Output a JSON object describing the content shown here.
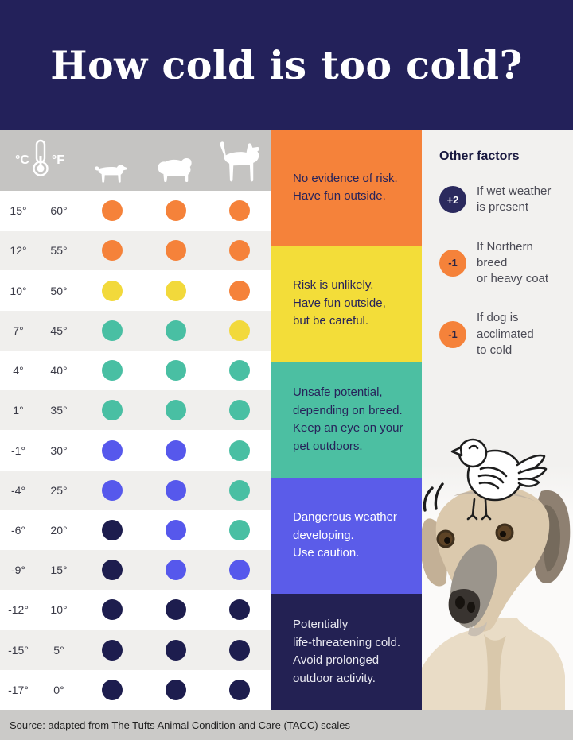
{
  "header": {
    "title": "How cold is too cold?"
  },
  "table": {
    "unit_c": "°C",
    "unit_f": "°F",
    "dog_columns": [
      "small-dog",
      "medium-dog",
      "large-dog"
    ],
    "rows": [
      {
        "c": "15°",
        "f": "60°",
        "dots": [
          "orange",
          "orange",
          "orange"
        ]
      },
      {
        "c": "12°",
        "f": "55°",
        "dots": [
          "orange",
          "orange",
          "orange"
        ]
      },
      {
        "c": "10°",
        "f": "50°",
        "dots": [
          "yellow",
          "yellow",
          "orange"
        ]
      },
      {
        "c": "7°",
        "f": "45°",
        "dots": [
          "teal",
          "teal",
          "yellow"
        ]
      },
      {
        "c": "4°",
        "f": "40°",
        "dots": [
          "teal",
          "teal",
          "teal"
        ]
      },
      {
        "c": "1°",
        "f": "35°",
        "dots": [
          "teal",
          "teal",
          "teal"
        ]
      },
      {
        "c": "-1°",
        "f": "30°",
        "dots": [
          "blue",
          "blue",
          "teal"
        ]
      },
      {
        "c": "-4°",
        "f": "25°",
        "dots": [
          "blue",
          "blue",
          "teal"
        ]
      },
      {
        "c": "-6°",
        "f": "20°",
        "dots": [
          "navy",
          "blue",
          "teal"
        ]
      },
      {
        "c": "-9°",
        "f": "15°",
        "dots": [
          "navy",
          "blue",
          "blue"
        ]
      },
      {
        "c": "-12°",
        "f": "10°",
        "dots": [
          "navy",
          "navy",
          "navy"
        ]
      },
      {
        "c": "-15°",
        "f": "5°",
        "dots": [
          "navy",
          "navy",
          "navy"
        ]
      },
      {
        "c": "-17°",
        "f": "0°",
        "dots": [
          "navy",
          "navy",
          "navy"
        ]
      }
    ]
  },
  "dot_colors": {
    "orange": "#f5823a",
    "yellow": "#f2d93b",
    "teal": "#49bfa3",
    "blue": "#5658ec",
    "navy": "#1d1d4e"
  },
  "risk_bands": [
    {
      "bg": "#f5823a",
      "fg": "#27235a",
      "lines": [
        "No evidence of risk.",
        "Have fun outside."
      ]
    },
    {
      "bg": "#f3dd39",
      "fg": "#27235a",
      "lines": [
        "Risk is unlikely.",
        "Have fun outside,",
        "but be careful."
      ]
    },
    {
      "bg": "#4cbfa2",
      "fg": "#27235a",
      "lines": [
        "Unsafe potential,",
        "depending on breed.",
        "Keep an eye on your",
        "pet outdoors."
      ]
    },
    {
      "bg": "#5b5ce9",
      "fg": "#ffffff",
      "lines": [
        "Dangerous weather",
        "developing.",
        "Use caution."
      ]
    },
    {
      "bg": "#232153",
      "fg": "#e8e8f0",
      "lines": [
        "Potentially",
        "life-threatening cold.",
        "Avoid prolonged",
        "outdoor activity."
      ]
    }
  ],
  "other_factors": {
    "heading": "Other factors",
    "items": [
      {
        "badge": "+2",
        "badge_bg": "#2b2a5e",
        "badge_fg": "#ffffff",
        "lines": [
          "If wet weather",
          "is present"
        ]
      },
      {
        "badge": "-1",
        "badge_bg": "#f5823a",
        "badge_fg": "#2b2544",
        "lines": [
          "If Northern breed",
          "or heavy coat"
        ]
      },
      {
        "badge": "-1",
        "badge_bg": "#f5823a",
        "badge_fg": "#2b2544",
        "lines": [
          "If dog is",
          "acclimated",
          "to cold"
        ]
      }
    ]
  },
  "footer": {
    "source": "Source: adapted from The Tufts Animal Condition and Care (TACC) scales"
  },
  "colors": {
    "header_bg": "#23215a",
    "table_head_bg": "#c5c4c2",
    "row_alt_bg": "#f0efed",
    "right_col_bg": "#f2f1ef",
    "footer_bg": "#cbcac8"
  },
  "chart_data": {
    "type": "heatmap",
    "title": "How cold is too cold?",
    "x_categories": [
      "small-dog",
      "medium-dog",
      "large-dog"
    ],
    "y_categories_celsius": [
      15,
      12,
      10,
      7,
      4,
      1,
      -1,
      -4,
      -6,
      -9,
      -12,
      -15,
      -17
    ],
    "y_categories_fahrenheit": [
      60,
      55,
      50,
      45,
      40,
      35,
      30,
      25,
      20,
      15,
      10,
      5,
      0
    ],
    "values": [
      [
        "orange",
        "orange",
        "orange"
      ],
      [
        "orange",
        "orange",
        "orange"
      ],
      [
        "yellow",
        "yellow",
        "orange"
      ],
      [
        "teal",
        "teal",
        "yellow"
      ],
      [
        "teal",
        "teal",
        "teal"
      ],
      [
        "teal",
        "teal",
        "teal"
      ],
      [
        "blue",
        "blue",
        "teal"
      ],
      [
        "blue",
        "blue",
        "teal"
      ],
      [
        "navy",
        "blue",
        "teal"
      ],
      [
        "navy",
        "blue",
        "blue"
      ],
      [
        "navy",
        "navy",
        "navy"
      ],
      [
        "navy",
        "navy",
        "navy"
      ],
      [
        "navy",
        "navy",
        "navy"
      ]
    ],
    "legend": [
      {
        "level": "orange",
        "meaning": "No evidence of risk. Have fun outside."
      },
      {
        "level": "yellow",
        "meaning": "Risk is unlikely. Have fun outside, but be careful."
      },
      {
        "level": "teal",
        "meaning": "Unsafe potential, depending on breed. Keep an eye on your pet outdoors."
      },
      {
        "level": "blue",
        "meaning": "Dangerous weather developing. Use caution."
      },
      {
        "level": "navy",
        "meaning": "Potentially life-threatening cold. Avoid prolonged outdoor activity."
      }
    ],
    "modifiers": [
      {
        "adjustment": "+2",
        "condition": "If wet weather is present"
      },
      {
        "adjustment": "-1",
        "condition": "If Northern breed or heavy coat"
      },
      {
        "adjustment": "-1",
        "condition": "If dog is acclimated to cold"
      }
    ],
    "source": "Source: adapted from The Tufts Animal Condition and Care (TACC) scales"
  }
}
